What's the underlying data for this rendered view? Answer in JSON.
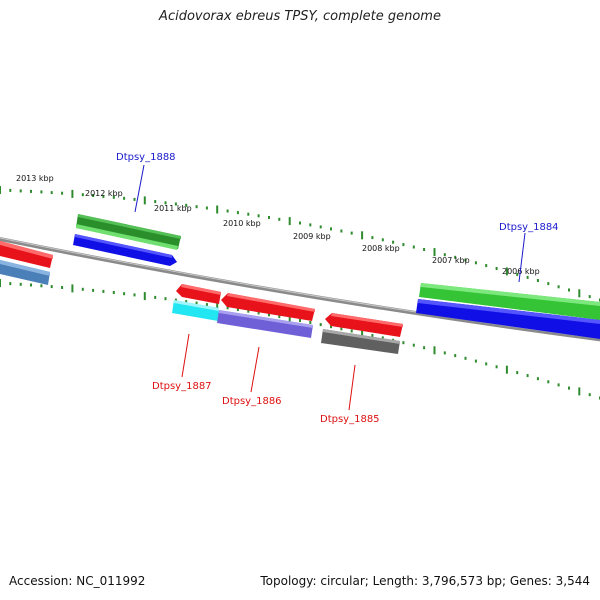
{
  "header": {
    "title": "Acidovorax ebreus TPSY, complete genome"
  },
  "footer": {
    "accession": "Accession: NC_011992",
    "summary": "Topology: circular; Length: 3,796,573 bp; Genes: 3,544"
  },
  "colors": {
    "backbone": "#8a8a8a",
    "tick": "#2e8b2e",
    "forward_label": "#1a1acc",
    "reverse_label": "#dd1111",
    "gene_red": "#e8121a",
    "gene_green": "#35c435",
    "gene_darkgreen": "#2a8f2a",
    "gene_blue": "#1010e6",
    "gene_steel": "#4a7fb8",
    "gene_cyan": "#22e6f2",
    "gene_purple": "#7060d8",
    "gene_gray": "#606060"
  },
  "scale": {
    "ticks": [
      {
        "label": "2013 kbp"
      },
      {
        "label": "2012 kbp"
      },
      {
        "label": "2011 kbp"
      },
      {
        "label": "2010 kbp"
      },
      {
        "label": "2009 kbp"
      },
      {
        "label": "2008 kbp"
      },
      {
        "label": "2007 kbp"
      },
      {
        "label": "2006 kbp"
      }
    ]
  },
  "gene_labels": [
    {
      "id": "Dtpsy_1888",
      "label": "Dtpsy_1888",
      "strand": "forward"
    },
    {
      "id": "Dtpsy_1884",
      "label": "Dtpsy_1884",
      "strand": "forward"
    },
    {
      "id": "Dtpsy_1887",
      "label": "Dtpsy_1887",
      "strand": "reverse"
    },
    {
      "id": "Dtpsy_1886",
      "label": "Dtpsy_1886",
      "strand": "reverse"
    },
    {
      "id": "Dtpsy_1885",
      "label": "Dtpsy_1885",
      "strand": "reverse"
    }
  ]
}
